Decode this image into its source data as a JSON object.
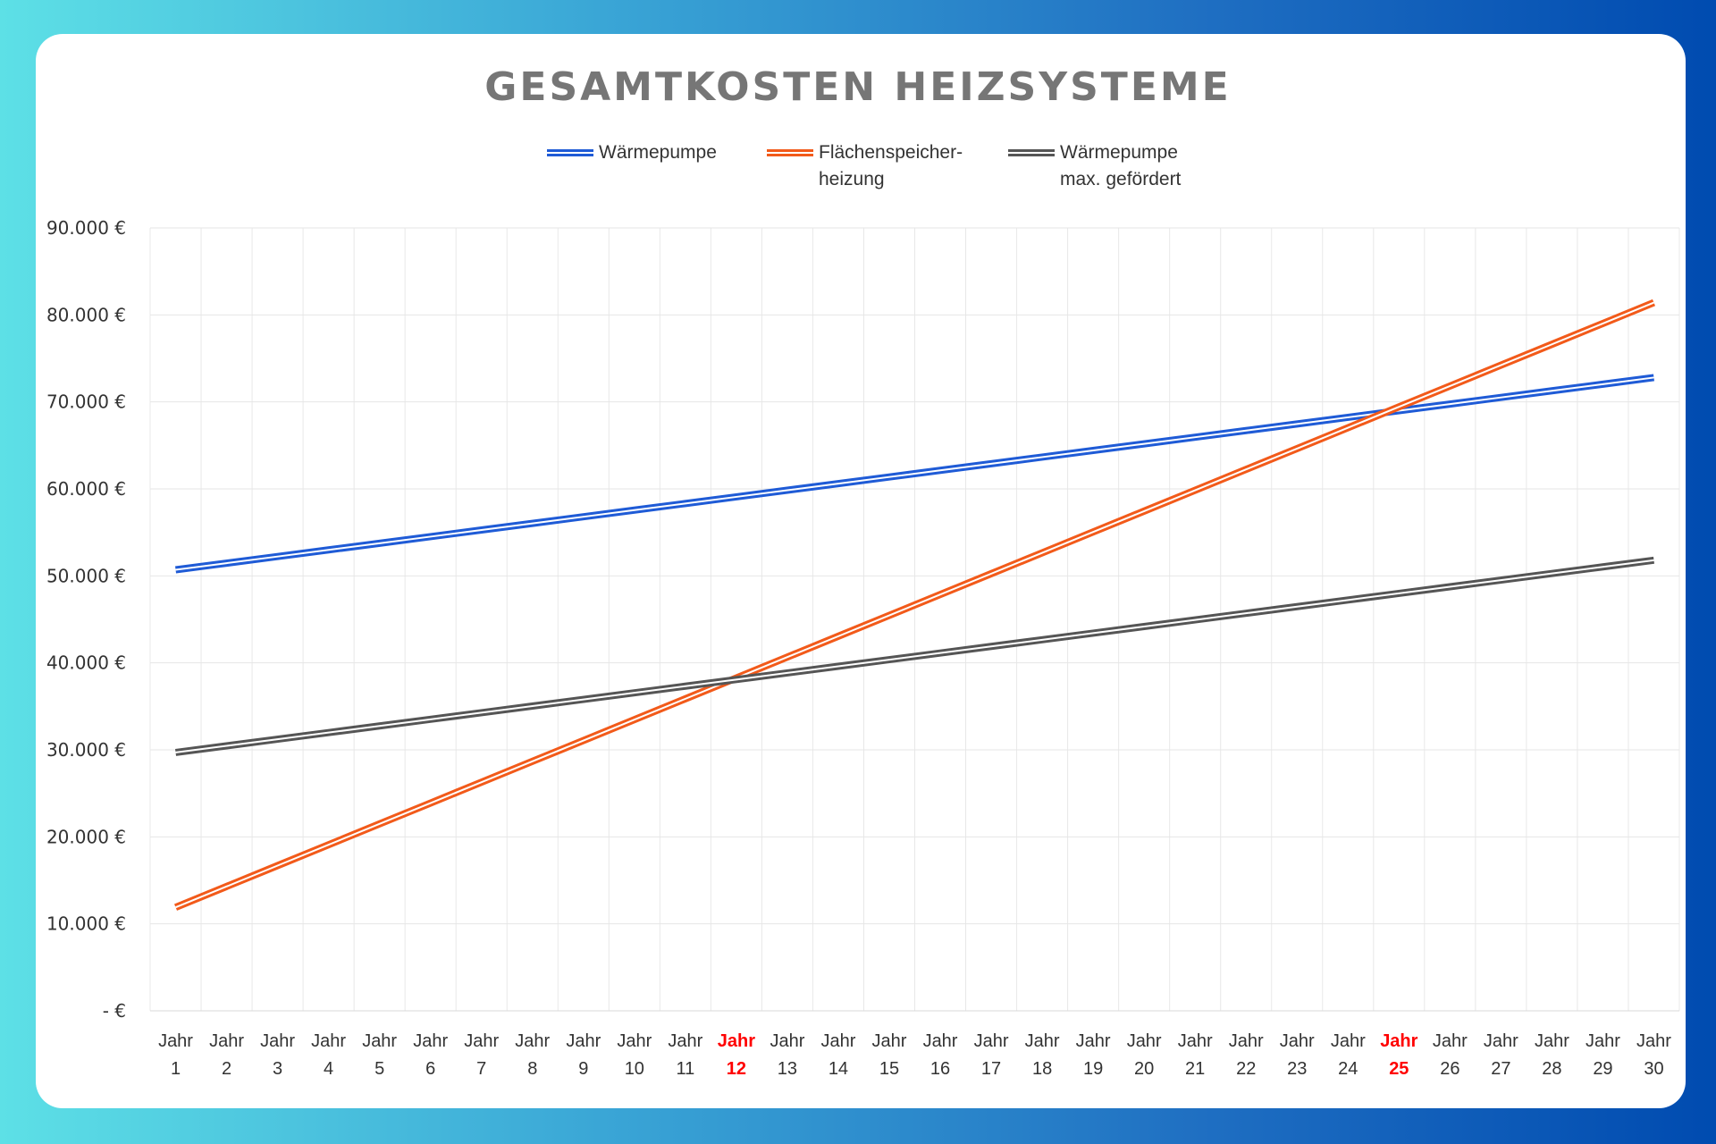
{
  "chart_data": {
    "type": "line",
    "title": "GESAMTKOSTEN HEIZSYSTEME",
    "xlabel": "",
    "ylabel": "",
    "ylim": [
      0,
      90000
    ],
    "yticks": [
      {
        "value": 0,
        "label": "-   €"
      },
      {
        "value": 10000,
        "label": "10.000 €"
      },
      {
        "value": 20000,
        "label": "20.000 €"
      },
      {
        "value": 30000,
        "label": "30.000 €"
      },
      {
        "value": 40000,
        "label": "40.000 €"
      },
      {
        "value": 50000,
        "label": "50.000 €"
      },
      {
        "value": 60000,
        "label": "60.000 €"
      },
      {
        "value": 70000,
        "label": "70.000 €"
      },
      {
        "value": 80000,
        "label": "80.000 €"
      },
      {
        "value": 90000,
        "label": "90.000 €"
      }
    ],
    "category_prefix": "Jahr",
    "categories": [
      "1",
      "2",
      "3",
      "4",
      "5",
      "6",
      "7",
      "8",
      "9",
      "10",
      "11",
      "12",
      "13",
      "14",
      "15",
      "16",
      "17",
      "18",
      "19",
      "20",
      "21",
      "22",
      "23",
      "24",
      "25",
      "26",
      "27",
      "28",
      "29",
      "30"
    ],
    "highlighted_categories": [
      "12",
      "25"
    ],
    "highlight_color": "#ff0000",
    "grid": true,
    "legend_placement": "top-center",
    "series": [
      {
        "name": "Wärmepumpe",
        "legend_lines": [
          "Wärmepumpe"
        ],
        "color": "#1f5bd6",
        "values": [
          50700,
          51462,
          52224,
          52986,
          53748,
          54510,
          55272,
          56034,
          56796,
          57558,
          58320,
          59082,
          59844,
          60606,
          61368,
          62130,
          62892,
          63654,
          64416,
          65178,
          65940,
          66702,
          67464,
          68226,
          68988,
          69750,
          70512,
          71274,
          72036,
          72798
        ]
      },
      {
        "name": "Flächenspeicherheizung",
        "legend_lines": [
          "Flächenspeicher-",
          "heizung"
        ],
        "color": "#f25a1a",
        "values": [
          11900,
          14297,
          16694,
          19091,
          21488,
          23885,
          26282,
          28679,
          31076,
          33473,
          35870,
          38267,
          40664,
          43061,
          45458,
          47855,
          50252,
          52649,
          55046,
          57443,
          59840,
          62237,
          64634,
          67031,
          69428,
          71825,
          74222,
          76619,
          79016,
          81413
        ]
      },
      {
        "name": "Wärmepumpe max. gefördert",
        "legend_lines": [
          "Wärmepumpe",
          "max. gefördert"
        ],
        "color": "#555555",
        "values": [
          29700,
          30462,
          31224,
          31986,
          32748,
          33510,
          34272,
          35034,
          35796,
          36558,
          37320,
          38082,
          38844,
          39606,
          40368,
          41130,
          41892,
          42654,
          43416,
          44178,
          44940,
          45702,
          46464,
          47226,
          47988,
          48750,
          49512,
          50274,
          51036,
          51798
        ]
      }
    ]
  }
}
